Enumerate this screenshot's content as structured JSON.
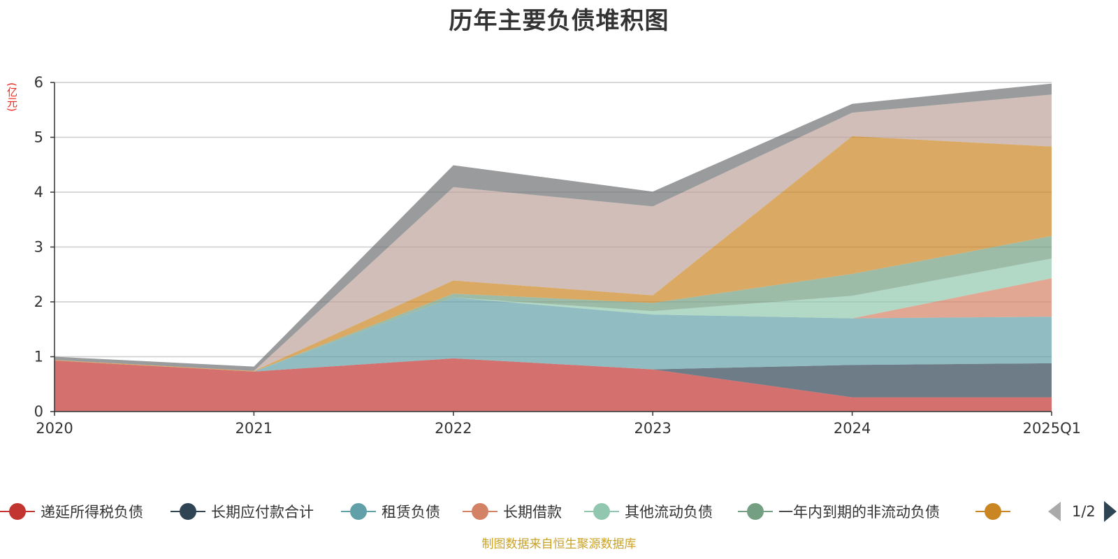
{
  "title": "历年主要负债堆积图",
  "unit": "(亿元)",
  "source_note": "制图数据来自恒生聚源数据库",
  "legend_page": "1/2",
  "legend_entries": [
    {
      "label": "递延所得税负债",
      "color": "#c23531"
    },
    {
      "label": "长期应付款合计",
      "color": "#2f4554"
    },
    {
      "label": "租赁负债",
      "color": "#61a0a8"
    },
    {
      "label": "长期借款",
      "color": "#d48265"
    },
    {
      "label": "其他流动负债",
      "color": "#91c7ae"
    },
    {
      "label": "一年内到期的非流动负债",
      "color": "#749f83"
    },
    {
      "label": "",
      "color": "#ca8622"
    }
  ],
  "chart_data": {
    "type": "area",
    "stacked": true,
    "title": "历年主要负债堆积图",
    "ylabel": "(亿元)",
    "categories": [
      "2020",
      "2021",
      "2022",
      "2023",
      "2024",
      "2025Q1"
    ],
    "ylim": [
      0,
      6
    ],
    "yticks": [
      0,
      1,
      2,
      3,
      4,
      5,
      6
    ],
    "grid": true,
    "legend_position": "bottom",
    "series": [
      {
        "name": "递延所得税负债",
        "color": "#c23531",
        "values": [
          0.93,
          0.73,
          0.97,
          0.77,
          0.26,
          0.26
        ]
      },
      {
        "name": "长期应付款合计",
        "color": "#2f4554",
        "values": [
          0.0,
          0.0,
          0.0,
          0.0,
          0.59,
          0.62
        ]
      },
      {
        "name": "租赁负债",
        "color": "#61a0a8",
        "values": [
          0.0,
          0.0,
          1.11,
          1.0,
          0.85,
          0.85
        ]
      },
      {
        "name": "长期借款",
        "color": "#d48265",
        "values": [
          0.0,
          0.0,
          0.0,
          0.0,
          0.0,
          0.7
        ]
      },
      {
        "name": "其他流动负债",
        "color": "#91c7ae",
        "values": [
          0.0,
          0.0,
          0.0,
          0.06,
          0.41,
          0.36
        ]
      },
      {
        "name": "一年内到期的非流动负债",
        "color": "#749f83",
        "values": [
          0.0,
          0.0,
          0.07,
          0.15,
          0.4,
          0.41
        ]
      },
      {
        "name": "",
        "color": "#ca8622",
        "values": [
          0.01,
          0.01,
          0.24,
          0.14,
          2.51,
          1.63
        ]
      },
      {
        "name": "",
        "color": "#bda29a",
        "values": [
          0.0,
          0.0,
          1.7,
          1.62,
          0.43,
          0.95
        ]
      },
      {
        "name": "",
        "color": "#6e7074",
        "values": [
          0.06,
          0.08,
          0.4,
          0.27,
          0.16,
          0.2
        ]
      }
    ]
  }
}
